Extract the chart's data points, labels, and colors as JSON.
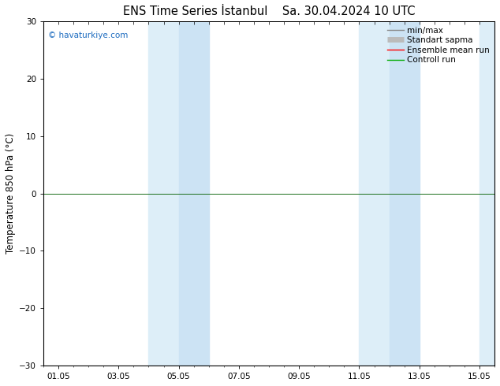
{
  "title": "ENS Time Series İstanbul",
  "subtitle": "Sa. 30.04.2024 10 UTC",
  "ylabel": "Temperature 850 hPa (°C)",
  "ylim": [
    -30,
    30
  ],
  "yticks": [
    -30,
    -20,
    -10,
    0,
    10,
    20,
    30
  ],
  "xtick_labels": [
    "01.05",
    "03.05",
    "05.05",
    "07.05",
    "09.05",
    "11.05",
    "13.05",
    "15.05"
  ],
  "xtick_positions": [
    0,
    2,
    4,
    6,
    8,
    10,
    12,
    14
  ],
  "xlim": [
    -0.5,
    14.5
  ],
  "shaded_bands": [
    {
      "start": 3.0,
      "end": 4.0,
      "color": "#ddeef8"
    },
    {
      "start": 4.0,
      "end": 5.0,
      "color": "#cce3f4"
    },
    {
      "start": 10.0,
      "end": 11.0,
      "color": "#ddeef8"
    },
    {
      "start": 11.0,
      "end": 12.0,
      "color": "#cce3f4"
    },
    {
      "start": 14.0,
      "end": 14.5,
      "color": "#ddeef8"
    }
  ],
  "hline_y": 0,
  "hline_color": "#1a6e1a",
  "legend_entries": [
    {
      "label": "min/max",
      "color": "#888888",
      "lw": 1.0,
      "type": "line"
    },
    {
      "label": "Standart sapma",
      "color": "#bbbbbb",
      "lw": 5,
      "type": "line"
    },
    {
      "label": "Ensemble mean run",
      "color": "#ff0000",
      "lw": 1.0,
      "type": "line"
    },
    {
      "label": "Controll run",
      "color": "#00aa00",
      "lw": 1.0,
      "type": "line"
    }
  ],
  "watermark": "© havaturkiye.com",
  "watermark_color": "#1a6abf",
  "background_color": "#ffffff",
  "plot_bg_color": "#ffffff",
  "title_fontsize": 10.5,
  "tick_label_fontsize": 7.5,
  "ylabel_fontsize": 8.5,
  "legend_fontsize": 7.5
}
